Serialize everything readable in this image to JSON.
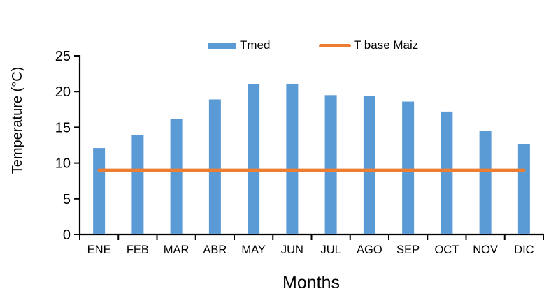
{
  "chart_data": {
    "type": "bar",
    "title": "",
    "categories": [
      "ENE",
      "FEB",
      "MAR",
      "ABR",
      "MAY",
      "JUN",
      "JUL",
      "AGO",
      "SEP",
      "OCT",
      "NOV",
      "DIC"
    ],
    "series": [
      {
        "name": "Tmed",
        "type": "bar",
        "color": "#5B9BD5",
        "values": [
          12.1,
          13.9,
          16.2,
          18.9,
          21.0,
          21.1,
          19.5,
          19.4,
          18.6,
          17.2,
          14.5,
          12.6
        ]
      },
      {
        "name": "T base Maiz",
        "type": "line",
        "color": "#ED7D31",
        "values": [
          9,
          9,
          9,
          9,
          9,
          9,
          9,
          9,
          9,
          9,
          9,
          9
        ]
      }
    ],
    "xlabel": "Months",
    "ylabel": "Temperature (°C)",
    "ylim": [
      0,
      25
    ],
    "yticks": [
      0,
      5,
      10,
      15,
      20,
      25
    ],
    "grid": false,
    "legend_position": "top",
    "axis_color": "#000000",
    "text_color": "#000000",
    "background": "#ffffff"
  }
}
